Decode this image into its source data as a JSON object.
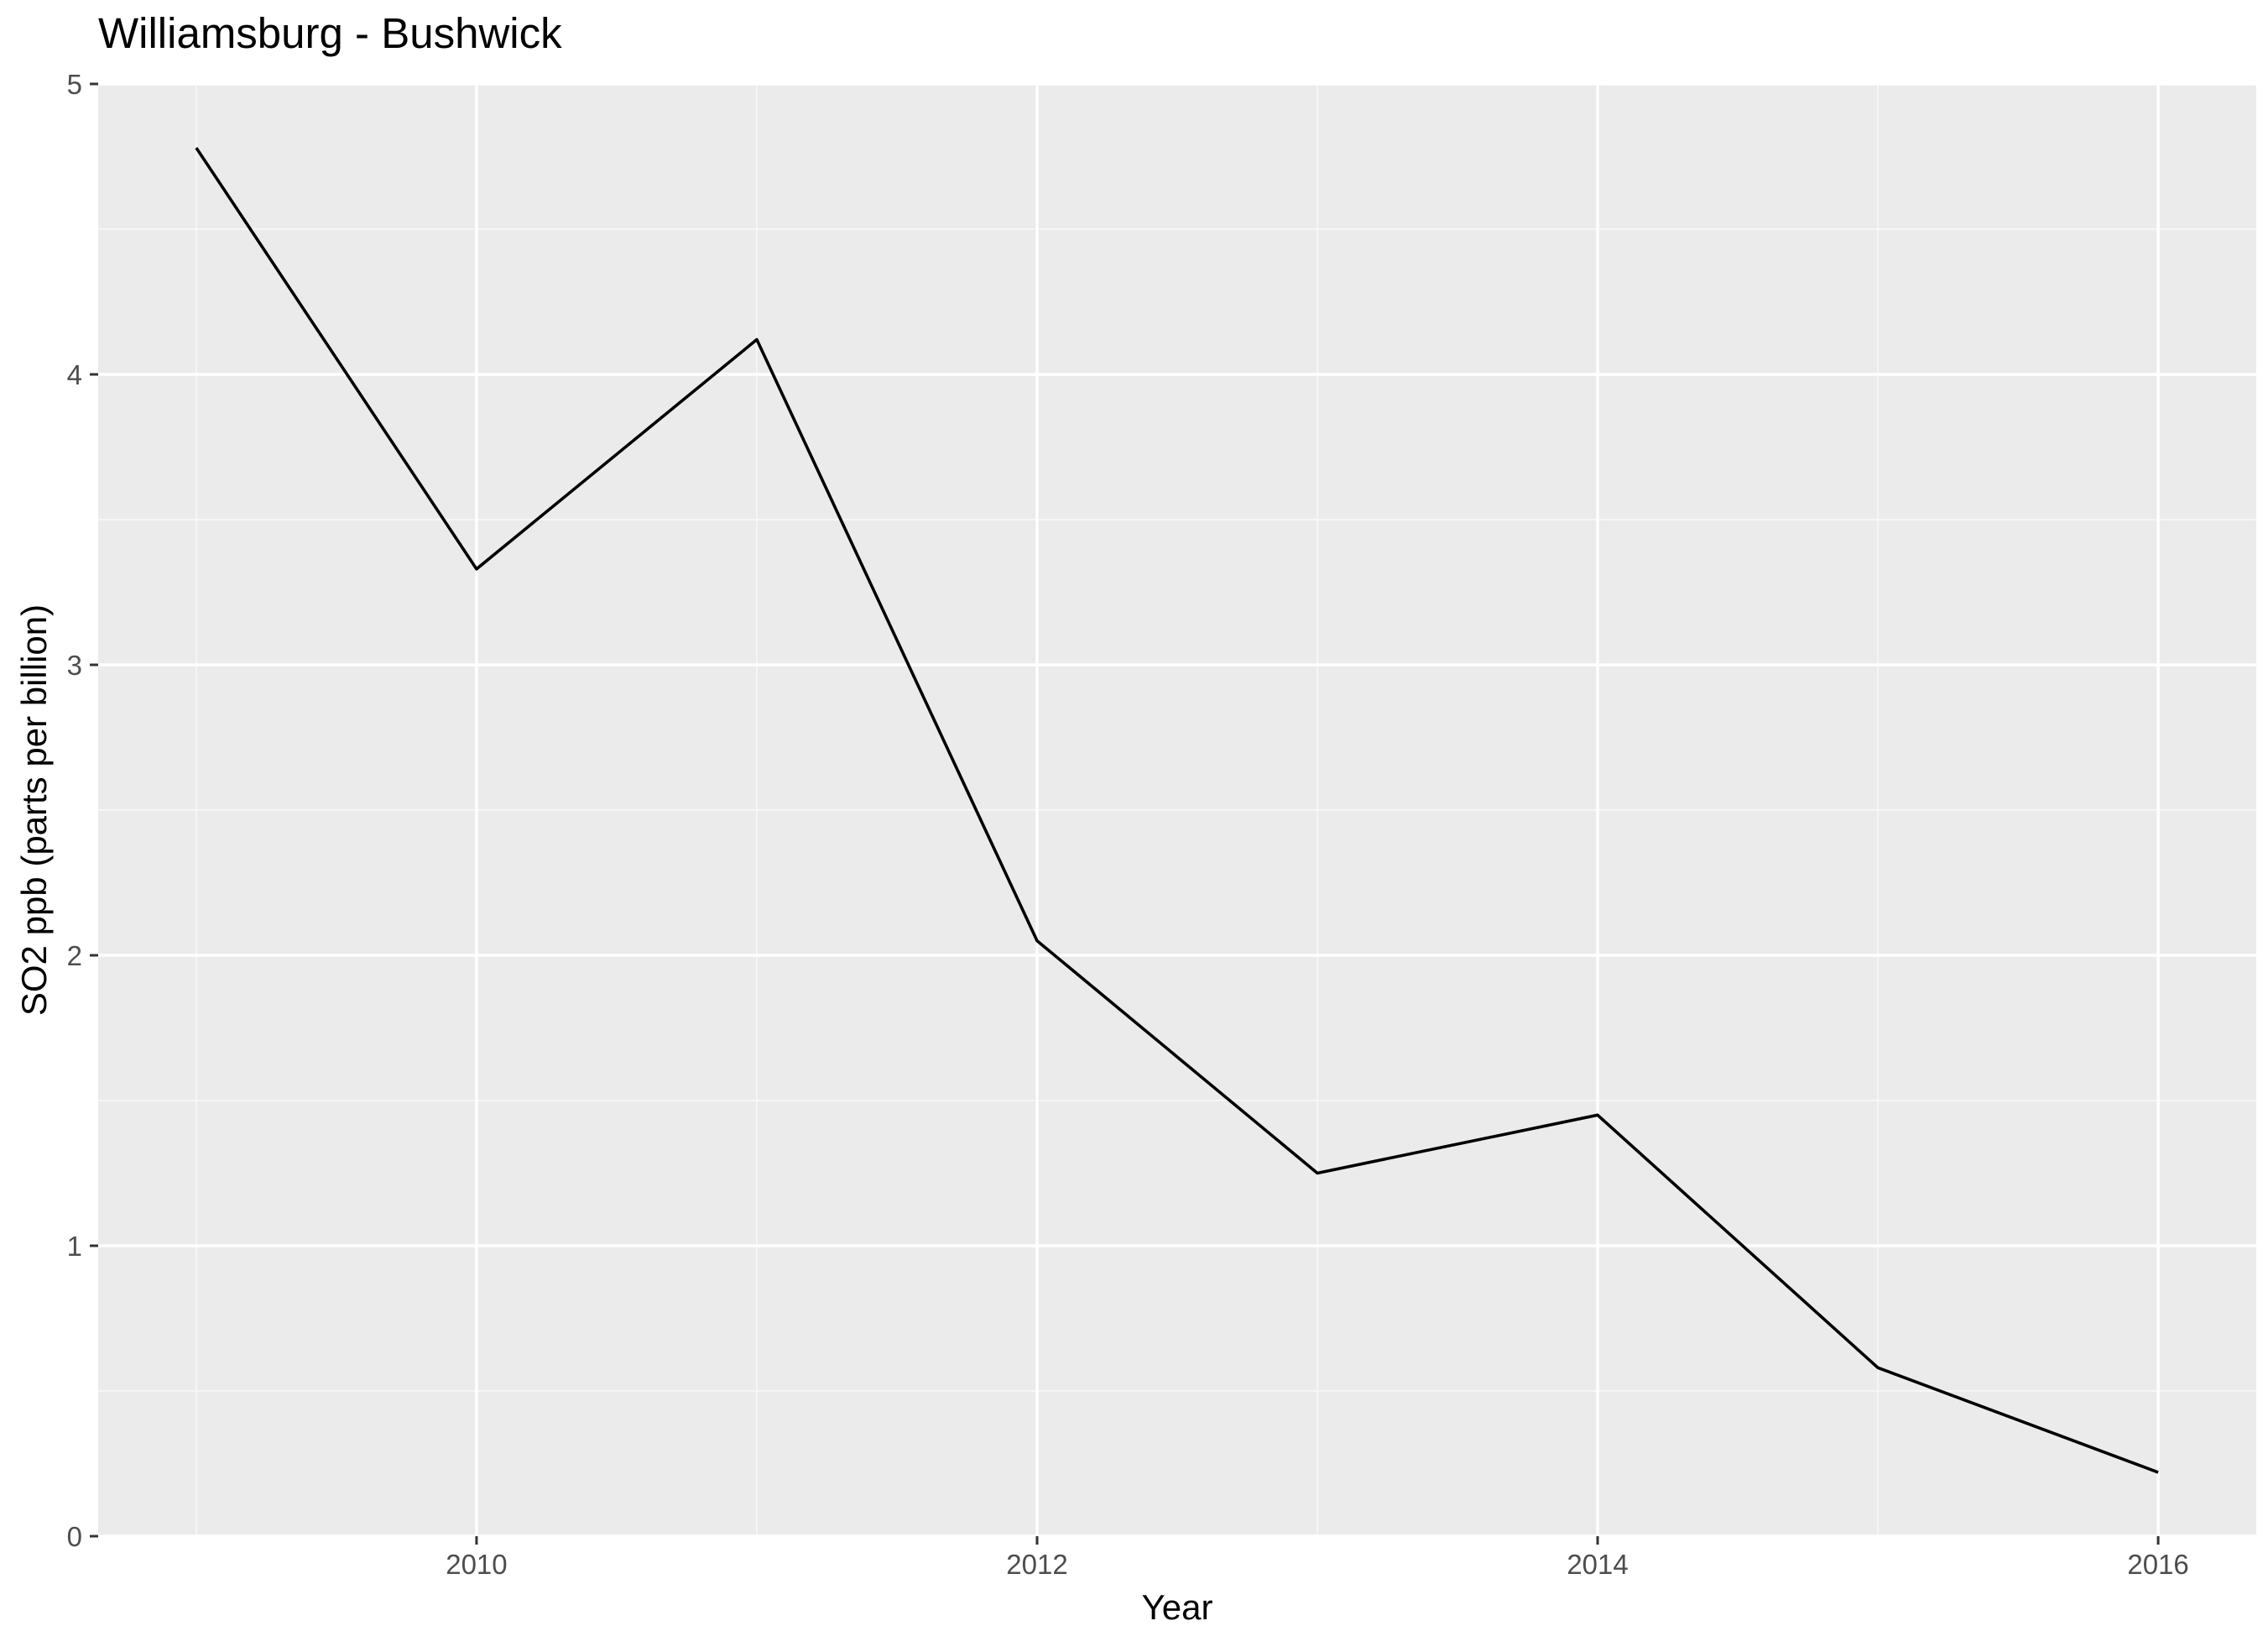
{
  "chart_data": {
    "type": "line",
    "title": "Williamsburg - Bushwick",
    "xlabel": "Year",
    "ylabel": "SO2 ppb (parts per billion)",
    "x": [
      2009,
      2010,
      2011,
      2012,
      2013,
      2014,
      2015,
      2016
    ],
    "series": [
      {
        "values": [
          4.78,
          3.33,
          4.12,
          2.05,
          1.25,
          1.45,
          0.58,
          0.22
        ]
      }
    ],
    "xlim": [
      2008.65,
      2016.35
    ],
    "ylim": [
      0,
      5
    ],
    "x_ticks": [
      2010,
      2012,
      2014,
      2016
    ],
    "x_tick_labels": [
      "2010",
      "2012",
      "2014",
      "2016"
    ],
    "y_ticks": [
      0,
      1,
      2,
      3,
      4,
      5
    ],
    "y_tick_labels": [
      "0",
      "1",
      "2",
      "3",
      "4",
      "5"
    ],
    "grid": true,
    "legend": "none",
    "colors": {
      "panel_background": "#ebebeb",
      "grid_major": "#ffffff",
      "grid_minor": "#f7f7f7",
      "line": "#000000",
      "tick": "#333333",
      "tick_label": "#4d4d4d",
      "text": "#000000"
    }
  }
}
